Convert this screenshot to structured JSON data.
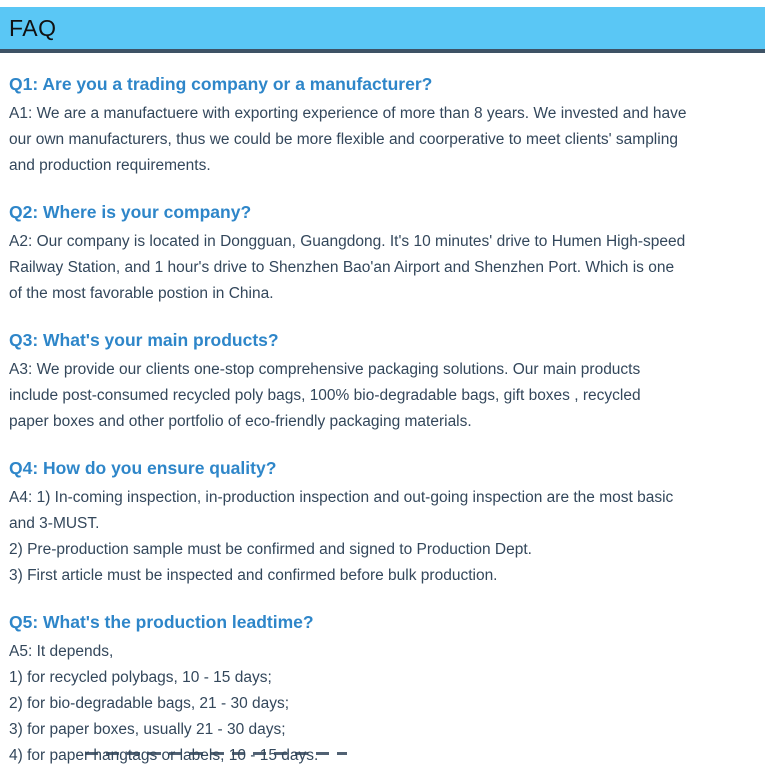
{
  "theme": {
    "header_bg": "#5ac7f5",
    "header_underline": "#3e5265",
    "question_color": "#2e86c9",
    "answer_color": "#33475b",
    "header_text": "#111111"
  },
  "faq": {
    "header": "FAQ",
    "sections": [
      {
        "question": "Q1: Are you a trading company or a manufacturer?",
        "answer_lines": [
          "A1: We are a manufactuere with exporting experience of more than 8 years. We invested and have",
          "our own manufacturers, thus we could be more flexible and coorperative to meet clients' sampling",
          "and production requirements."
        ]
      },
      {
        "question": "Q2: Where is your company?",
        "answer_lines": [
          "A2: Our company is located in Dongguan, Guangdong. It's 10 minutes' drive to Humen High-speed",
          "Railway Station, and 1 hour's drive to Shenzhen Bao'an Airport and Shenzhen Port. Which is one",
          "of the most favorable postion in China."
        ]
      },
      {
        "question": "Q3: What's your main products?",
        "answer_lines": [
          "A3: We provide our clients one-stop comprehensive packaging solutions. Our main products",
          "include post-consumed recycled poly bags, 100% bio-degradable bags, gift boxes , recycled",
          "paper boxes and other portfolio of eco-friendly packaging materials."
        ]
      },
      {
        "question": "Q4: How do you ensure quality?",
        "answer_lines": [
          "A4: 1) In-coming inspection, in-production inspection and out-going inspection are the most basic",
          "and 3-MUST.",
          "2) Pre-production sample must be confirmed and signed to Production Dept.",
          "3) First article must be inspected and confirmed before bulk production."
        ]
      },
      {
        "question": "Q5: What's the production leadtime?",
        "answer_lines": [
          "A5: It depends,",
          "1) for recycled polybags, 10 - 15 days;",
          "2) for bio-degradable bags, 21 - 30 days;",
          "3) for paper boxes, usually 21 - 30 days;",
          "4) for paper hangtags or labels, 10 - 15 days."
        ]
      }
    ]
  }
}
